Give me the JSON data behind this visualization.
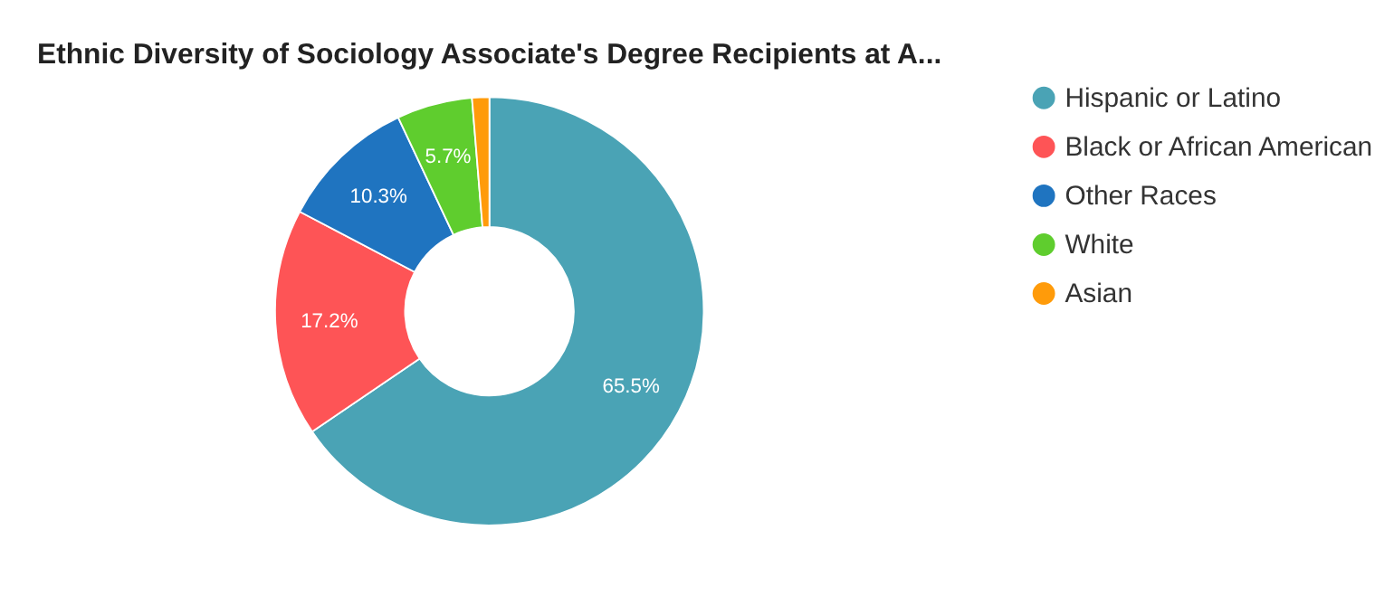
{
  "chart_data": {
    "type": "donut",
    "title": "Ethnic Diversity of Sociology Associate's Degree Recipients at A...",
    "categories": [
      "Hispanic or Latino",
      "Black or African American",
      "Other Races",
      "White",
      "Asian"
    ],
    "values": [
      65.5,
      17.2,
      10.3,
      5.7,
      1.3
    ],
    "colors": [
      "#4aa3b5",
      "#fe5456",
      "#1f74c0",
      "#5fcd2e",
      "#ff9b0a"
    ],
    "value_labels": [
      "65.5%",
      "17.2%",
      "10.3%",
      "5.7%",
      null
    ],
    "legend": "right"
  }
}
